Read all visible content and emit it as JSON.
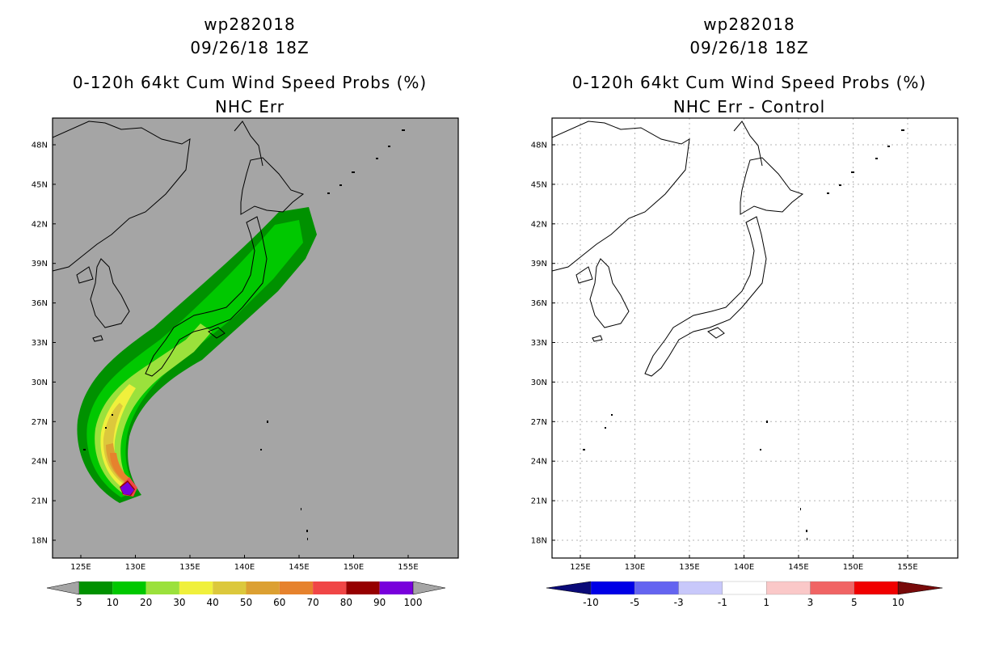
{
  "left": {
    "title1": "wp282018",
    "title2": "09/26/18 18Z",
    "title3": "0-120h 64kt Cum Wind Speed Probs (%)",
    "title4": "NHC Err",
    "lat_labels": [
      "48N",
      "45N",
      "42N",
      "39N",
      "36N",
      "33N",
      "30N",
      "27N",
      "24N",
      "21N",
      "18N"
    ],
    "lon_labels": [
      "125E",
      "130E",
      "135E",
      "140E",
      "145E",
      "150E",
      "155E"
    ],
    "colorbar": {
      "labels": [
        "5",
        "10",
        "20",
        "30",
        "40",
        "50",
        "60",
        "70",
        "80",
        "90",
        "100"
      ],
      "colors": [
        "#009100",
        "#00c800",
        "#9be13c",
        "#f0f03c",
        "#dcc83c",
        "#dca032",
        "#e6822d",
        "#f04646",
        "#960000",
        "#7800dc"
      ],
      "end_color": "#a5a5a5"
    }
  },
  "right": {
    "title1": "wp282018",
    "title2": "09/26/18 18Z",
    "title3": "0-120h 64kt Cum Wind Speed Probs (%)",
    "title4": "NHC Err - Control",
    "lat_labels": [
      "48N",
      "45N",
      "42N",
      "39N",
      "36N",
      "33N",
      "30N",
      "27N",
      "24N",
      "21N",
      "18N"
    ],
    "lon_labels": [
      "125E",
      "130E",
      "135E",
      "140E",
      "145E",
      "150E",
      "155E"
    ],
    "colorbar": {
      "labels": [
        "-10",
        "-5",
        "-3",
        "-1",
        "1",
        "3",
        "5",
        "10"
      ],
      "colors": [
        "#0000e6",
        "#6464f0",
        "#c8c8fa",
        "#ffffff",
        "#fac8c8",
        "#f06464",
        "#f00000"
      ],
      "end_left": "#0a0a78",
      "end_right": "#780a0a"
    }
  }
}
